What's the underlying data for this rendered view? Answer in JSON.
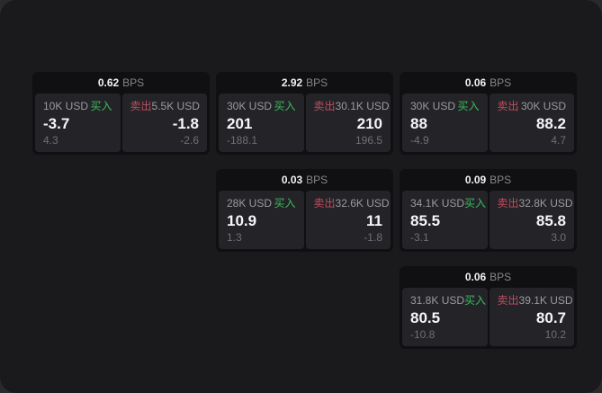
{
  "labels": {
    "bps_unit": "BPS",
    "buy": "买入",
    "sell": "卖出"
  },
  "colors": {
    "window_bg": "#1a1a1c",
    "card_bg": "#101012",
    "panel_bg": "#242428",
    "buy_green": "#3cbb5d",
    "sell_red": "#c24b60",
    "primary_text": "#f6f6f7",
    "secondary_text": "#9b9b9f",
    "muted_text": "#6f6f74"
  },
  "cards": [
    {
      "bps": "0.62",
      "col": 1,
      "row": 1,
      "buy": {
        "size": "10K USD",
        "main": "-3.7",
        "sub": "4.3"
      },
      "sell": {
        "size": "5.5K USD",
        "main": "-1.8",
        "sub": "-2.6"
      }
    },
    {
      "bps": "2.92",
      "col": 2,
      "row": 1,
      "buy": {
        "size": "30K USD",
        "main": "201",
        "sub": "-188.1"
      },
      "sell": {
        "size": "30.1K USD",
        "main": "210",
        "sub": "196.5"
      }
    },
    {
      "bps": "0.06",
      "col": 3,
      "row": 1,
      "buy": {
        "size": "30K USD",
        "main": "88",
        "sub": "-4.9"
      },
      "sell": {
        "size": "30K USD",
        "main": "88.2",
        "sub": "4.7"
      }
    },
    {
      "bps": "0.03",
      "col": 2,
      "row": 2,
      "buy": {
        "size": "28K USD",
        "main": "10.9",
        "sub": "1.3"
      },
      "sell": {
        "size": "32.6K USD",
        "main": "11",
        "sub": "-1.8"
      }
    },
    {
      "bps": "0.09",
      "col": 3,
      "row": 2,
      "buy": {
        "size": "34.1K USD",
        "main": "85.5",
        "sub": "-3.1"
      },
      "sell": {
        "size": "32.8K USD",
        "main": "85.8",
        "sub": "3.0"
      }
    },
    {
      "bps": "0.06",
      "col": 3,
      "row": 3,
      "buy": {
        "size": "31.8K USD",
        "main": "80.5",
        "sub": "-10.8"
      },
      "sell": {
        "size": "39.1K USD",
        "main": "80.7",
        "sub": "10.2"
      }
    }
  ]
}
